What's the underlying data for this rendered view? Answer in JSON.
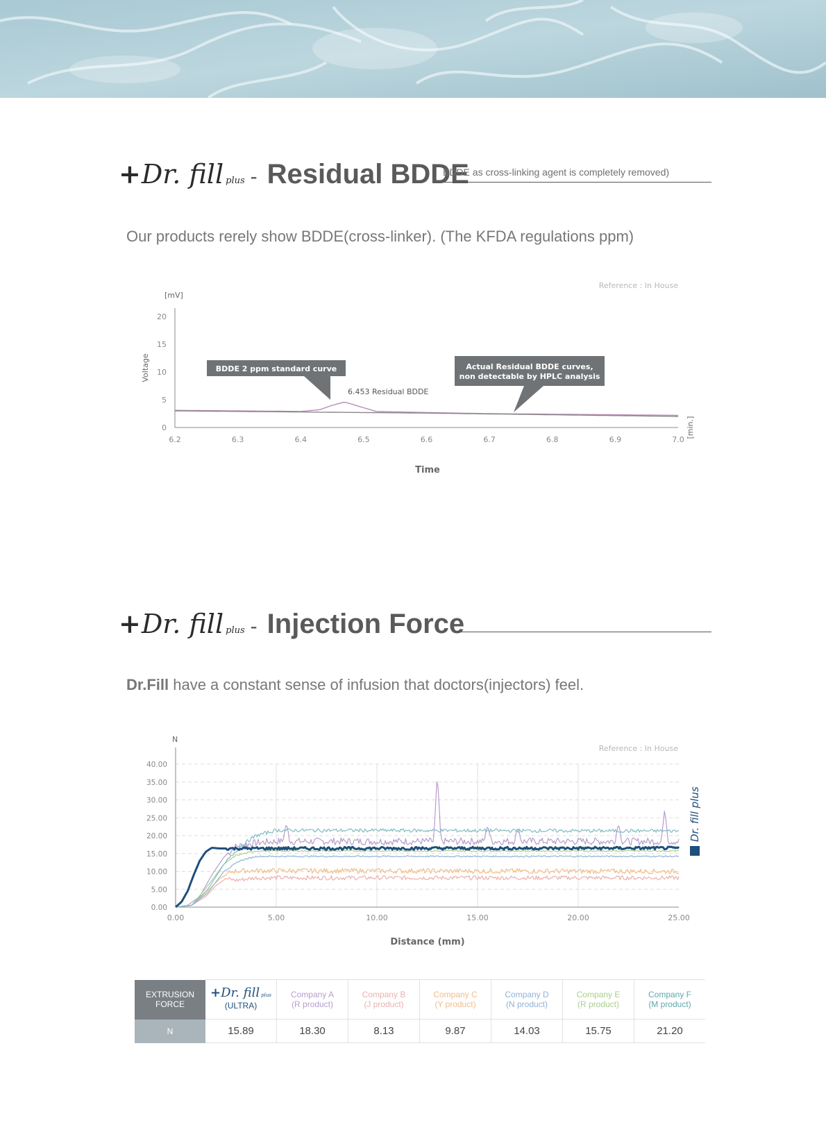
{
  "brand": {
    "plus": "+",
    "name": "Dr. fill",
    "suffix": "plus"
  },
  "residual": {
    "title": "Residual BDDE",
    "note": "BDDE as cross-linking agent is completely removed)",
    "lead": "Our products rerely show BDDE(cross-linker). (The KFDA regulations ppm)"
  },
  "injection": {
    "title": "Injection Force",
    "lead_bold": "Dr.Fill",
    "lead_rest": " have a constant sense of infusion that doctors(injectors) feel."
  },
  "chart_data": [
    {
      "type": "line",
      "reference": "Reference : In House",
      "ylabel": "Voltage",
      "yunit": "[mV]",
      "xlabel": "Time",
      "xunit": "[min.]",
      "xlim": [
        6.2,
        7.0
      ],
      "ylim": [
        0,
        20
      ],
      "xticks": [
        "6.2",
        "6.3",
        "6.4",
        "6.5",
        "6.6",
        "6.7",
        "6.8",
        "6.9",
        "7.0"
      ],
      "yticks": [
        "0",
        "5",
        "10",
        "15",
        "20"
      ],
      "series": [
        {
          "key": "standard",
          "color": "#b98bb5",
          "x": [
            6.2,
            6.3,
            6.4,
            6.43,
            6.45,
            6.47,
            6.49,
            6.52,
            6.6,
            6.7,
            6.8,
            6.9,
            7.0
          ],
          "y": [
            3.1,
            3.0,
            2.9,
            3.2,
            4.0,
            4.6,
            3.9,
            2.9,
            2.7,
            2.5,
            2.4,
            2.3,
            2.2
          ]
        },
        {
          "key": "actual",
          "color": "#888888",
          "x": [
            6.2,
            6.4,
            6.6,
            6.8,
            7.0
          ],
          "y": [
            3.0,
            2.8,
            2.6,
            2.3,
            2.0
          ]
        }
      ],
      "annotations": {
        "standard_callout": "BDDE 2 ppm standard curve",
        "peak_label": "6.453 Residual BDDE",
        "actual_callout_line1": "Actual Residual BDDE curves,",
        "actual_callout_line2": "non detectable by HPLC analysis"
      }
    },
    {
      "type": "line",
      "reference": "Reference : In House",
      "yunit": "N",
      "xlabel": "Distance (mm)",
      "xlim": [
        0,
        25
      ],
      "ylim": [
        0,
        40
      ],
      "xticks": [
        "0.00",
        "5.00",
        "10.00",
        "15.00",
        "20.00",
        "25.00"
      ],
      "yticks": [
        "0.00",
        "5.00",
        "10.00",
        "15.00",
        "20.00",
        "25.00",
        "30.00",
        "35.00",
        "40.00"
      ],
      "legend": "Dr. fill plus",
      "series": [
        {
          "key": "drfill",
          "color": "#1f4f7c",
          "x": [
            0,
            0.3,
            0.6,
            0.9,
            1.2,
            1.5,
            1.8,
            2.2,
            25
          ],
          "y": [
            0,
            1.5,
            4.5,
            9,
            13,
            15.5,
            16.6,
            16.4,
            16.5
          ],
          "noise": 0.4,
          "width": 3
        },
        {
          "key": "a",
          "color": "#b79ccd",
          "x": [
            0,
            0.6,
            1.2,
            1.8,
            2.4,
            3.0,
            4.0,
            5.0,
            25
          ],
          "y": [
            0,
            0.5,
            3,
            9,
            14,
            17,
            18,
            18.4,
            18.4
          ],
          "noise": 1.0,
          "width": 1.2,
          "spikes": [
            [
              5.5,
              23.5
            ],
            [
              13.0,
              37.5
            ],
            [
              15.5,
              23
            ],
            [
              17.0,
              22.5
            ],
            [
              22.0,
              23.5
            ],
            [
              24.3,
              27.5
            ]
          ]
        },
        {
          "key": "b",
          "color": "#ebb0ae",
          "x": [
            0,
            0.8,
            1.5,
            2.0,
            2.5,
            3.0,
            4.0,
            25
          ],
          "y": [
            0,
            0.5,
            3,
            6,
            8,
            7.5,
            8.2,
            8.2
          ],
          "noise": 0.6,
          "width": 1.2
        },
        {
          "key": "c",
          "color": "#efbe8a",
          "x": [
            0,
            0.8,
            1.5,
            2.2,
            2.8,
            3.5,
            25
          ],
          "y": [
            0,
            0.5,
            4,
            8,
            10,
            10.2,
            10.0
          ],
          "noise": 0.7,
          "width": 1.2
        },
        {
          "key": "d",
          "color": "#8fb2d6",
          "x": [
            0,
            0.8,
            1.6,
            2.4,
            3.2,
            4.0,
            25
          ],
          "y": [
            0,
            0.5,
            4,
            10,
            13,
            14.2,
            14.2
          ],
          "noise": 0.2,
          "width": 1.2
        },
        {
          "key": "e",
          "color": "#a9cf8a",
          "x": [
            0,
            0.8,
            1.6,
            2.4,
            3.0,
            4.0,
            25
          ],
          "y": [
            0,
            0.5,
            6,
            12,
            14.5,
            15.7,
            15.7
          ],
          "noise": 0.2,
          "width": 1.2
        },
        {
          "key": "f",
          "color": "#7fbcc2",
          "x": [
            0,
            0.8,
            1.6,
            2.4,
            3.2,
            4.0,
            5.0,
            25
          ],
          "y": [
            0,
            0.5,
            5,
            12,
            17,
            20,
            21.5,
            21.3
          ],
          "noise": 0.5,
          "width": 1.2
        }
      ]
    }
  ],
  "table": {
    "row_header_top_line1": "EXTRUSION",
    "row_header_top_line2": "FORCE",
    "row_header_bottom": "N",
    "columns": [
      {
        "name": "+Dr. fill plus",
        "sub": "(ULTRA)",
        "value": "15.89",
        "color": "#1f4f7c"
      },
      {
        "name": "Company A",
        "sub": "(R product)",
        "value": "18.30",
        "color": "#b79ccd"
      },
      {
        "name": "Company B",
        "sub": "(J product)",
        "value": "8.13",
        "color": "#ebb0ae"
      },
      {
        "name": "Company C",
        "sub": "(Y product)",
        "value": "9.87",
        "color": "#efbe8a"
      },
      {
        "name": "Company D",
        "sub": "(N product)",
        "value": "14.03",
        "color": "#8fb2d6"
      },
      {
        "name": "Company E",
        "sub": "(R product)",
        "value": "15.75",
        "color": "#a9cf8a"
      },
      {
        "name": "Company F",
        "sub": "(M product)",
        "value": "21.20",
        "color": "#5fa7ad"
      }
    ]
  }
}
